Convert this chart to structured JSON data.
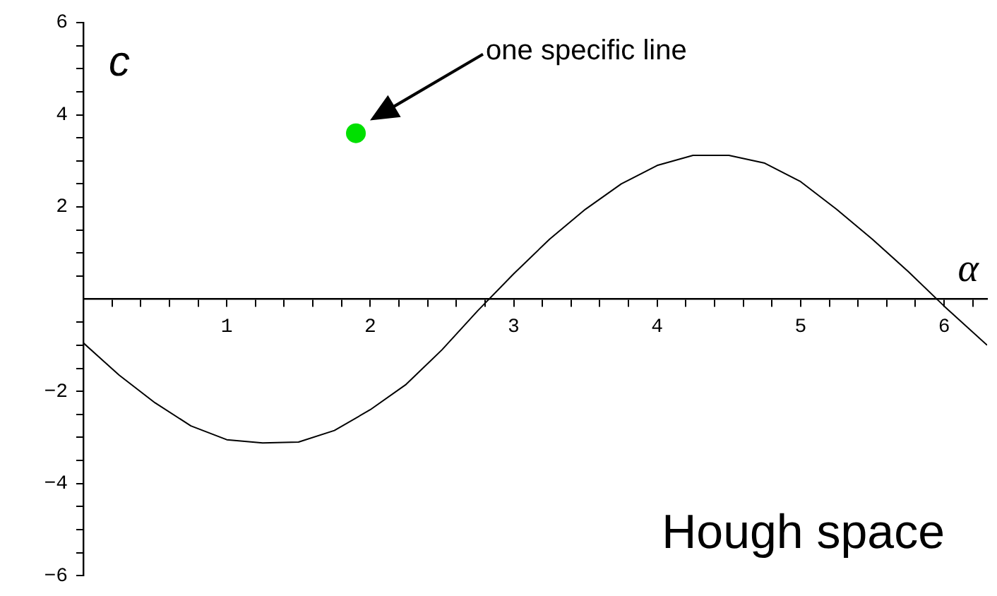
{
  "chart_data": {
    "type": "line",
    "xlabel": "α",
    "ylabel": "c",
    "xlim": [
      0,
      6.3
    ],
    "ylim": [
      -6,
      6
    ],
    "xticks": [
      {
        "value": 0.2,
        "label": null
      },
      {
        "value": 0.4,
        "label": null
      },
      {
        "value": 0.6,
        "label": null
      },
      {
        "value": 0.8,
        "label": null
      },
      1,
      {
        "value": 1.2,
        "label": null
      },
      {
        "value": 1.4,
        "label": null
      },
      {
        "value": 1.6,
        "label": null
      },
      {
        "value": 1.8,
        "label": null
      },
      2,
      {
        "value": 2.2,
        "label": null
      },
      {
        "value": 2.4,
        "label": null
      },
      {
        "value": 2.6,
        "label": null
      },
      {
        "value": 2.8,
        "label": null
      },
      3,
      {
        "value": 3.2,
        "label": null
      },
      {
        "value": 3.4,
        "label": null
      },
      {
        "value": 3.6,
        "label": null
      },
      {
        "value": 3.8,
        "label": null
      },
      4,
      {
        "value": 4.2,
        "label": null
      },
      {
        "value": 4.4,
        "label": null
      },
      {
        "value": 4.6,
        "label": null
      },
      {
        "value": 4.8,
        "label": null
      },
      5,
      {
        "value": 5.2,
        "label": null
      },
      {
        "value": 5.4,
        "label": null
      },
      {
        "value": 5.6,
        "label": null
      },
      {
        "value": 5.8,
        "label": null
      },
      6,
      {
        "value": 6.2,
        "label": null
      }
    ],
    "yticks": [
      {
        "value": -6,
        "label": "−6"
      },
      {
        "value": -5.5,
        "label": null
      },
      {
        "value": -5,
        "label": null
      },
      {
        "value": -4.5,
        "label": null
      },
      {
        "value": -4,
        "label": "−4"
      },
      {
        "value": -3.5,
        "label": null
      },
      {
        "value": -3,
        "label": null
      },
      {
        "value": -2.5,
        "label": null
      },
      {
        "value": -2,
        "label": "−2"
      },
      {
        "value": -1.5,
        "label": null
      },
      {
        "value": -1,
        "label": null
      },
      {
        "value": -0.5,
        "label": null
      },
      {
        "value": 0.5,
        "label": null
      },
      {
        "value": 1,
        "label": null
      },
      {
        "value": 1.5,
        "label": null
      },
      2,
      {
        "value": 2.5,
        "label": null
      },
      {
        "value": 3,
        "label": null
      },
      {
        "value": 3.5,
        "label": null
      },
      4,
      {
        "value": 4.5,
        "label": null
      },
      {
        "value": 5,
        "label": null
      },
      {
        "value": 5.5,
        "label": null
      },
      6
    ],
    "grid": false,
    "legend": false,
    "series": [
      {
        "color": "#000000",
        "marker": "none",
        "x": [
          0,
          0.25,
          0.5,
          0.75,
          1.0,
          1.25,
          1.5,
          1.75,
          2.0,
          2.25,
          2.5,
          2.75,
          3.0,
          3.25,
          3.5,
          3.75,
          4.0,
          4.25,
          4.5,
          4.75,
          5.0,
          5.25,
          5.5,
          5.75,
          6.0,
          6.3
        ],
        "values": [
          -0.95,
          -1.65,
          -2.25,
          -2.75,
          -3.05,
          -3.12,
          -3.1,
          -2.85,
          -2.4,
          -1.85,
          -1.1,
          -0.25,
          0.55,
          1.3,
          1.95,
          2.5,
          2.9,
          3.12,
          3.12,
          2.95,
          2.55,
          1.95,
          1.3,
          0.6,
          -0.15,
          -1.0
        ]
      },
      {
        "type": "scatter",
        "color": "#00e000",
        "marker": "circle",
        "x": [
          1.9
        ],
        "values": [
          3.6
        ]
      }
    ],
    "annotations": [
      "one specific line",
      "Hough space"
    ]
  }
}
